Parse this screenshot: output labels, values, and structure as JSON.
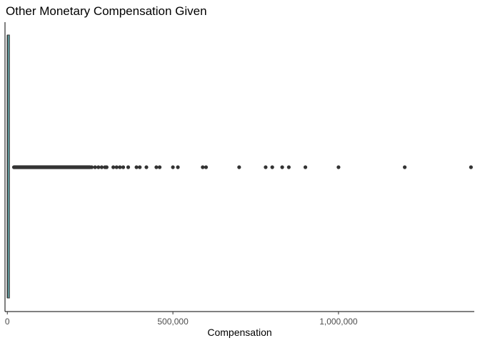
{
  "chart_data": {
    "type": "boxplot",
    "title": "Other Monetary Compensation Given",
    "xlabel": "Compensation",
    "ylabel": "",
    "orientation": "horizontal",
    "xlim": [
      -7000,
      1410000
    ],
    "x_ticks": [
      {
        "value": 0,
        "label": "0"
      },
      {
        "value": 500000,
        "label": "500,000"
      },
      {
        "value": 1000000,
        "label": "1,000,000"
      }
    ],
    "grid": false,
    "legend": "none",
    "colors": {
      "box_fill": "#5f9ea0",
      "box_outline": "#333333",
      "points": "#333333",
      "axis": "#000000"
    },
    "box": {
      "min": 0,
      "q1": 0,
      "median": 0,
      "q3": 2500,
      "max": 6000
    },
    "outliers_continuous_range": [
      20000,
      250000
    ],
    "outliers": [
      255000,
      265000,
      275000,
      285000,
      295000,
      300000,
      320000,
      330000,
      340000,
      350000,
      365000,
      390000,
      400000,
      420000,
      450000,
      460000,
      500000,
      515000,
      590000,
      600000,
      700000,
      780000,
      800000,
      830000,
      850000,
      900000,
      1000000,
      1200000,
      1400000
    ]
  }
}
